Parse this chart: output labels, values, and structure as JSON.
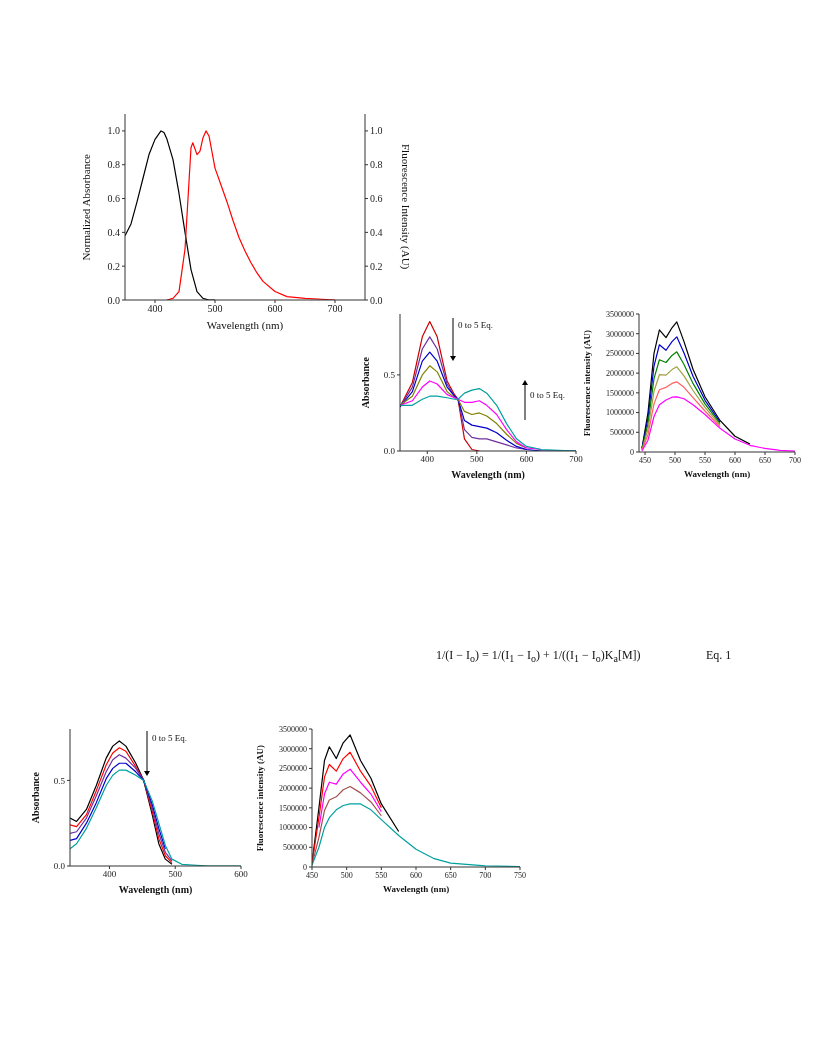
{
  "chart_data": [
    {
      "type": "line",
      "xlabel": "Wavelength (nm)",
      "ylabel": "Normalized Absorbance",
      "y2label": "Fluorescence Intensity (AU)",
      "xlim": [
        350,
        750
      ],
      "xticks": [
        400,
        500,
        600,
        700
      ],
      "ylim": [
        0,
        1.1
      ],
      "yticks": [
        {
          "value": 0,
          "label": "0.0"
        },
        {
          "value": 0.2,
          "label": "0.2"
        },
        {
          "value": 0.4,
          "label": "0.4"
        },
        {
          "value": 0.6,
          "label": "0.6"
        },
        {
          "value": 0.8,
          "label": "0.8"
        },
        {
          "value": 1,
          "label": "1.0"
        }
      ],
      "y2lim": [
        0,
        1.1
      ],
      "y2ticks": [
        {
          "value": 0,
          "label": "0.0"
        },
        {
          "value": 0.2,
          "label": "0.2"
        },
        {
          "value": 0.4,
          "label": "0.4"
        },
        {
          "value": 0.6,
          "label": "0.6"
        },
        {
          "value": 0.8,
          "label": "0.8"
        },
        {
          "value": 1,
          "label": "1.0"
        }
      ],
      "series": [
        {
          "color": "#000000",
          "x": [
            350,
            360,
            370,
            380,
            390,
            400,
            410,
            415,
            420,
            430,
            440,
            450,
            460,
            470,
            480,
            490,
            500
          ],
          "values": [
            0.38,
            0.45,
            0.58,
            0.72,
            0.86,
            0.95,
            1.0,
            0.99,
            0.95,
            0.83,
            0.63,
            0.4,
            0.18,
            0.05,
            0.01,
            0,
            0
          ]
        },
        {
          "color": "#ff0000",
          "axis": "y2",
          "x": [
            420,
            430,
            440,
            450,
            455,
            460,
            463,
            470,
            475,
            480,
            485,
            490,
            500,
            510,
            520,
            530,
            540,
            550,
            560,
            570,
            580,
            600,
            620,
            650,
            700
          ],
          "values": [
            0,
            0.01,
            0.05,
            0.3,
            0.6,
            0.9,
            0.93,
            0.86,
            0.88,
            0.96,
            1.0,
            0.97,
            0.78,
            0.68,
            0.58,
            0.47,
            0.37,
            0.29,
            0.22,
            0.16,
            0.11,
            0.05,
            0.02,
            0.01,
            0
          ]
        }
      ]
    },
    {
      "type": "line",
      "xlabel": "Wavelength (nm)",
      "ylabel": "Absorbance",
      "xlim": [
        345,
        700
      ],
      "xticks": [
        400,
        500,
        600,
        700
      ],
      "ylim": [
        0,
        0.9
      ],
      "yticks": [
        {
          "value": 0,
          "label": "0.0"
        },
        {
          "value": 0.5,
          "label": "0.5"
        }
      ],
      "annotations": [
        "0 to 5 Eq.",
        "0 to 5 Eq."
      ],
      "x": [
        345,
        370,
        390,
        405,
        420,
        440,
        455,
        462,
        475,
        490,
        505,
        520,
        540,
        560,
        580,
        600,
        630,
        700
      ],
      "series": [
        {
          "color": "#cc0000",
          "values": [
            0.29,
            0.45,
            0.75,
            0.85,
            0.75,
            0.46,
            0.37,
            0.34,
            0.08,
            0.01,
            0,
            null,
            null,
            null,
            null,
            null,
            null,
            null
          ]
        },
        {
          "color": "#7030a0",
          "values": [
            0.29,
            0.42,
            0.67,
            0.75,
            0.67,
            0.44,
            0.36,
            0.34,
            0.14,
            0.09,
            0.08,
            0.08,
            0.06,
            0.04,
            0.02,
            0.01,
            null,
            null
          ]
        },
        {
          "color": "#0000cc",
          "values": [
            0.29,
            0.39,
            0.59,
            0.65,
            0.59,
            0.42,
            0.36,
            0.34,
            0.2,
            0.17,
            0.16,
            0.15,
            0.12,
            0.07,
            0.03,
            0.01,
            0,
            0
          ]
        },
        {
          "color": "#808000",
          "values": [
            0.3,
            0.36,
            0.5,
            0.56,
            0.52,
            0.39,
            0.35,
            0.34,
            0.26,
            0.24,
            0.25,
            0.23,
            0.18,
            0.11,
            0.05,
            0.02,
            null,
            null
          ]
        },
        {
          "color": "#ff00ff",
          "values": [
            0.3,
            0.33,
            0.42,
            0.46,
            0.44,
            0.37,
            0.35,
            0.34,
            0.32,
            0.32,
            0.33,
            0.3,
            0.24,
            0.14,
            0.06,
            0.02,
            0.01,
            null
          ]
        },
        {
          "color": "#00a0a0",
          "values": [
            0.3,
            0.3,
            0.34,
            0.36,
            0.36,
            0.35,
            0.34,
            0.34,
            0.38,
            0.4,
            0.41,
            0.38,
            0.3,
            0.18,
            0.08,
            0.03,
            0.01,
            0
          ]
        }
      ]
    },
    {
      "type": "line",
      "xlabel": "Wavelength (nm)",
      "ylabel": "Fluorescence intensity (AU)",
      "xlim": [
        440,
        700
      ],
      "xticks": [
        450,
        500,
        550,
        600,
        650,
        700
      ],
      "ylim": [
        0,
        3500000
      ],
      "yticks": [
        0,
        500000,
        1000000,
        1500000,
        2000000,
        2500000,
        3000000,
        3500000
      ],
      "annotations": [
        "1/(I − I$_{o}$) = 1/(I$_{1}$ − I$_{o}$) + 1/((I$_{1}$ − I$_{o}$)K$_{a}$[M])",
        "Eq. 1"
      ],
      "x": [
        445,
        455,
        465,
        474,
        485,
        495,
        503,
        515,
        530,
        550,
        575,
        600,
        625,
        650,
        675,
        700
      ],
      "series": [
        {
          "color": "#000000",
          "values": [
            100000,
            1000000,
            2500000,
            3100000,
            2900000,
            3150000,
            3300000,
            2800000,
            2100000,
            1400000,
            800000,
            400000,
            200000,
            null,
            null,
            null
          ]
        },
        {
          "color": "#0000cc",
          "values": [
            90000,
            860000,
            2180000,
            2720000,
            2580000,
            2800000,
            2920000,
            2510000,
            1920000,
            1310000,
            760000,
            null,
            null,
            null,
            null,
            null
          ]
        },
        {
          "color": "#008000",
          "values": [
            70000,
            720000,
            1860000,
            2340000,
            2270000,
            2450000,
            2540000,
            2220000,
            1740000,
            1220000,
            720000,
            null,
            null,
            null,
            null,
            null
          ]
        },
        {
          "color": "#a0a040",
          "values": [
            60000,
            580000,
            1540000,
            1960000,
            1950000,
            2090000,
            2160000,
            1930000,
            1560000,
            1130000,
            680000,
            null,
            null,
            null,
            null,
            null
          ]
        },
        {
          "color": "#ff6060",
          "values": [
            40000,
            440000,
            1220000,
            1580000,
            1640000,
            1740000,
            1780000,
            1640000,
            1380000,
            1040000,
            640000,
            null,
            null,
            null,
            null,
            null
          ]
        },
        {
          "color": "#ff00ff",
          "values": [
            30000,
            300000,
            900000,
            1200000,
            1320000,
            1390000,
            1400000,
            1350000,
            1200000,
            950000,
            600000,
            330000,
            170000,
            90000,
            40000,
            20000
          ]
        }
      ]
    },
    {
      "type": "line",
      "xlabel": "Wavelength (nm)",
      "ylabel": "Absorbance",
      "xlim": [
        340,
        600
      ],
      "xticks": [
        400,
        500,
        600
      ],
      "ylim": [
        0,
        0.8
      ],
      "yticks": [
        {
          "value": 0,
          "label": "0.0"
        },
        {
          "value": 0.5,
          "label": "0.5"
        }
      ],
      "annotations": [
        "0 to 5 Eq."
      ],
      "x": [
        340,
        350,
        365,
        380,
        395,
        405,
        415,
        425,
        440,
        452,
        465,
        475,
        485,
        495,
        510,
        550,
        600
      ],
      "series": [
        {
          "color": "#000000",
          "values": [
            0.28,
            0.26,
            0.33,
            0.47,
            0.63,
            0.7,
            0.73,
            0.7,
            0.6,
            0.5,
            0.3,
            0.13,
            0.04,
            0.01,
            null,
            null,
            null
          ]
        },
        {
          "color": "#ff0000",
          "values": [
            0.24,
            0.23,
            0.3,
            0.44,
            0.59,
            0.66,
            0.69,
            0.67,
            0.58,
            0.5,
            0.32,
            0.16,
            0.06,
            0.02,
            null,
            null,
            null
          ]
        },
        {
          "color": "#7030a0",
          "values": [
            0.19,
            0.2,
            0.28,
            0.41,
            0.55,
            0.62,
            0.65,
            0.63,
            0.57,
            0.5,
            0.34,
            0.19,
            0.08,
            0.03,
            null,
            null,
            null
          ]
        },
        {
          "color": "#0000cc",
          "values": [
            0.15,
            0.16,
            0.25,
            0.37,
            0.51,
            0.57,
            0.6,
            0.6,
            0.55,
            0.5,
            0.36,
            0.22,
            0.1,
            null,
            null,
            null,
            null
          ]
        },
        {
          "color": "#00a0a0",
          "values": [
            0.1,
            0.13,
            0.22,
            0.34,
            0.47,
            0.53,
            0.56,
            0.56,
            0.53,
            0.5,
            0.38,
            0.25,
            0.12,
            0.04,
            0.01,
            0,
            0
          ]
        }
      ]
    },
    {
      "type": "line",
      "xlabel": "Wavelength (nm)",
      "ylabel": "Fluorescence intensity (AU)",
      "xlim": [
        450,
        750
      ],
      "xticks": [
        450,
        500,
        550,
        600,
        650,
        700,
        750
      ],
      "ylim": [
        0,
        3500000
      ],
      "yticks": [
        0,
        500000,
        1000000,
        1500000,
        2000000,
        2500000,
        3000000,
        3500000
      ],
      "x": [
        450,
        460,
        468,
        475,
        485,
        495,
        505,
        520,
        535,
        550,
        575,
        600,
        625,
        650,
        700,
        750
      ],
      "series": [
        {
          "color": "#000000",
          "values": [
            100000,
            1500000,
            2700000,
            3050000,
            2750000,
            3150000,
            3350000,
            2700000,
            2250000,
            1600000,
            900000,
            null,
            null,
            null,
            null,
            null
          ]
        },
        {
          "color": "#ff0000",
          "values": [
            90000,
            1250000,
            2280000,
            2600000,
            2430000,
            2750000,
            2910000,
            2430000,
            2050000,
            1500000,
            null,
            null,
            null,
            null,
            null,
            null
          ]
        },
        {
          "color": "#ff00ff",
          "values": [
            null,
            1000000,
            1850000,
            2150000,
            2100000,
            2360000,
            2480000,
            2150000,
            1850000,
            1400000,
            null,
            null,
            null,
            null,
            null,
            null
          ]
        },
        {
          "color": "#a05050",
          "values": [
            60000,
            750000,
            1430000,
            1700000,
            1780000,
            1960000,
            2040000,
            1880000,
            1650000,
            1300000,
            null,
            null,
            null,
            null,
            null,
            null
          ]
        },
        {
          "color": "#00a0a0",
          "values": [
            50000,
            500000,
            1000000,
            1250000,
            1450000,
            1560000,
            1600000,
            1600000,
            1450000,
            1200000,
            800000,
            450000,
            220000,
            100000,
            30000,
            10000
          ]
        }
      ]
    }
  ]
}
